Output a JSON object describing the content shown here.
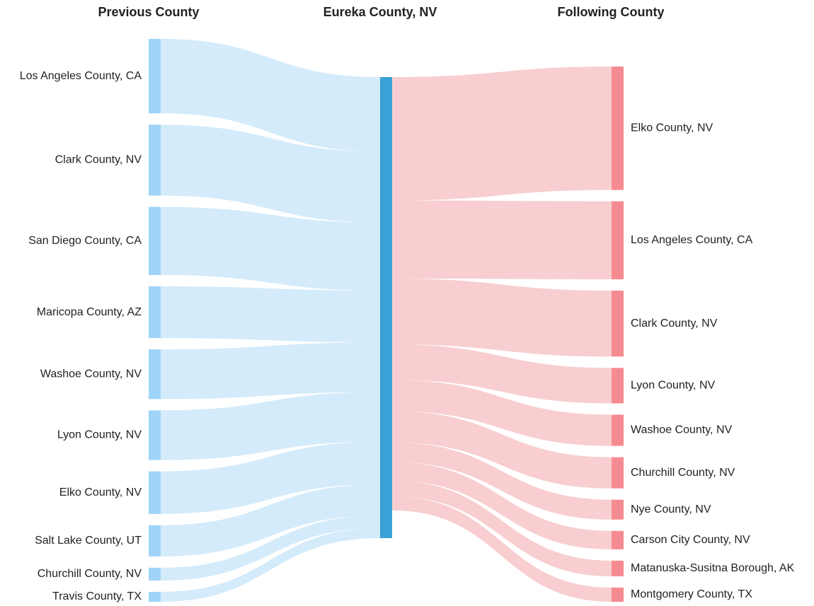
{
  "chart_data": {
    "type": "sankey",
    "column_titles": [
      "Previous County",
      "Eureka County, NV",
      "Following County"
    ],
    "sources": [
      {
        "name": "Los Angeles County, CA",
        "value": 105
      },
      {
        "name": "Clark County, NV",
        "value": 100
      },
      {
        "name": "San Diego County, CA",
        "value": 96
      },
      {
        "name": "Maricopa County, AZ",
        "value": 73
      },
      {
        "name": "Washoe County, NV",
        "value": 70
      },
      {
        "name": "Lyon County, NV",
        "value": 70
      },
      {
        "name": "Elko County, NV",
        "value": 60
      },
      {
        "name": "Salt Lake County, UT",
        "value": 44
      },
      {
        "name": "Churchill County, NV",
        "value": 18
      },
      {
        "name": "Travis County, TX",
        "value": 14
      }
    ],
    "targets": [
      {
        "name": "Elko County, NV",
        "value": 174
      },
      {
        "name": "Los Angeles County, CA",
        "value": 110
      },
      {
        "name": "Clark County, NV",
        "value": 93
      },
      {
        "name": "Lyon County, NV",
        "value": 50
      },
      {
        "name": "Washoe County, NV",
        "value": 44
      },
      {
        "name": "Churchill County, NV",
        "value": 44
      },
      {
        "name": "Nye County, NV",
        "value": 28
      },
      {
        "name": "Carson City County, NV",
        "value": 26
      },
      {
        "name": "Matanuska-Susitna Borough, AK",
        "value": 22
      },
      {
        "name": "Montgomery County, TX",
        "value": 20
      }
    ],
    "colors": {
      "source_node": "#9fd4f8",
      "source_link": "#d2eafb",
      "center_node": "#3aa0d5",
      "target_link": "#f8cbcd",
      "target_node": "#f58b91"
    }
  }
}
